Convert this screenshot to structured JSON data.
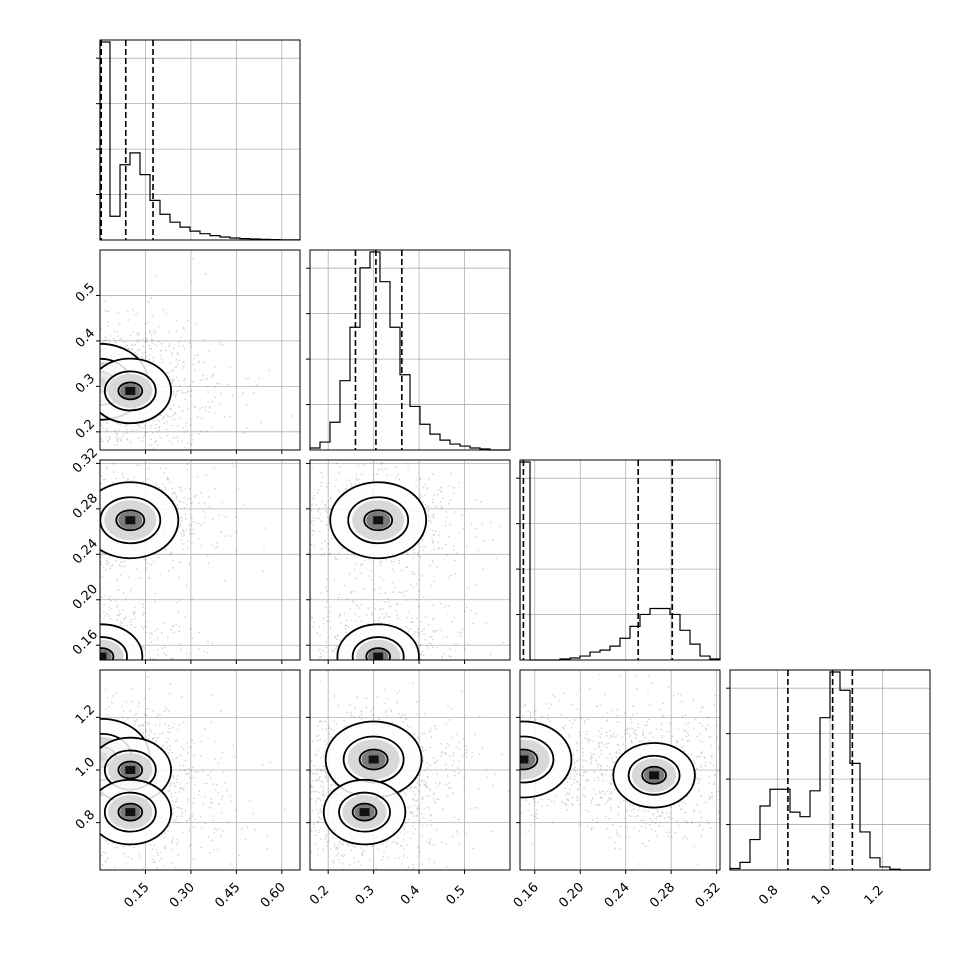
{
  "chart_data": {
    "type": "corner",
    "grid": true,
    "parameters": [
      {
        "ticks": [
          0.15,
          0.3,
          0.45,
          0.6
        ],
        "tick_labels": [
          "0.15",
          "0.30",
          "0.45",
          "0.60"
        ],
        "range": [
          0.0,
          0.66
        ]
      },
      {
        "ticks": [
          0.2,
          0.3,
          0.4,
          0.5
        ],
        "tick_labels": [
          "0.2",
          "0.3",
          "0.4",
          "0.5"
        ],
        "range": [
          0.16,
          0.6
        ]
      },
      {
        "ticks": [
          0.16,
          0.2,
          0.24,
          0.28,
          0.32
        ],
        "tick_labels": [
          "0.16",
          "0.20",
          "0.24",
          "0.28",
          "0.32"
        ],
        "range": [
          0.147,
          0.323
        ]
      },
      {
        "ticks": [
          0.8,
          1.0,
          1.2
        ],
        "tick_labels": [
          "0.8",
          "1.0",
          "1.2"
        ],
        "range": [
          0.62,
          1.38
        ]
      }
    ],
    "histograms": [
      {
        "param": 0,
        "counts": [
          1.0,
          0.12,
          0.38,
          0.44,
          0.33,
          0.2,
          0.13,
          0.09,
          0.065,
          0.045,
          0.032,
          0.022,
          0.015,
          0.01,
          0.007,
          0.005,
          0.003,
          0.002,
          0.001,
          0.001
        ],
        "quantiles": [
          0.004,
          0.085,
          0.175
        ]
      },
      {
        "param": 1,
        "counts": [
          0.01,
          0.04,
          0.14,
          0.35,
          0.62,
          0.92,
          1.0,
          0.85,
          0.62,
          0.38,
          0.22,
          0.13,
          0.08,
          0.05,
          0.03,
          0.02,
          0.01,
          0.005,
          0.0,
          0.0
        ],
        "quantiles": [
          0.26,
          0.305,
          0.362
        ]
      },
      {
        "param": 2,
        "counts": [
          1.0,
          0.0,
          0.0,
          0.0,
          0.005,
          0.01,
          0.02,
          0.04,
          0.05,
          0.07,
          0.11,
          0.17,
          0.23,
          0.26,
          0.26,
          0.23,
          0.15,
          0.08,
          0.02,
          0.005
        ],
        "quantiles": [
          0.15,
          0.251,
          0.281
        ]
      },
      {
        "param": 3,
        "counts": [
          0.01,
          0.05,
          0.2,
          0.42,
          0.53,
          0.53,
          0.38,
          0.35,
          0.52,
          1.0,
          1.3,
          1.18,
          0.7,
          0.25,
          0.08,
          0.02,
          0.005,
          0.0,
          0.0,
          0.0
        ],
        "quantiles": [
          0.84,
          1.01,
          1.085
        ]
      }
    ],
    "pairs": [
      {
        "x_param": 0,
        "y_param": 1,
        "modes": [
          [
            0.0,
            0.31
          ],
          [
            0.1,
            0.29
          ]
        ]
      },
      {
        "x_param": 0,
        "y_param": 2,
        "modes": [
          [
            0.1,
            0.27
          ],
          [
            0.005,
            0.15
          ]
        ]
      },
      {
        "x_param": 1,
        "y_param": 2,
        "modes": [
          [
            0.31,
            0.27
          ],
          [
            0.31,
            0.15
          ]
        ]
      },
      {
        "x_param": 0,
        "y_param": 3,
        "modes": [
          [
            0.005,
            1.05
          ],
          [
            0.1,
            1.0
          ],
          [
            0.1,
            0.84
          ]
        ]
      },
      {
        "x_param": 1,
        "y_param": 3,
        "modes": [
          [
            0.3,
            1.04
          ],
          [
            0.28,
            0.84
          ]
        ]
      },
      {
        "x_param": 2,
        "y_param": 3,
        "modes": [
          [
            0.15,
            1.04
          ],
          [
            0.265,
            0.98
          ]
        ]
      }
    ]
  }
}
